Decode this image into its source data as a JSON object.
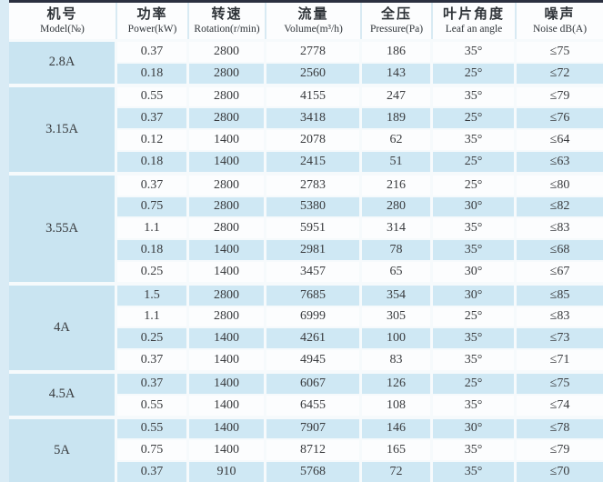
{
  "table": {
    "columns": [
      {
        "zh": "机号",
        "en": "Model(№)"
      },
      {
        "zh": "功率",
        "en": "Power(kW)"
      },
      {
        "zh": "转速",
        "en": "Rotation(r/min)"
      },
      {
        "zh": "流量",
        "en": "Volume(m³/h)"
      },
      {
        "zh": "全压",
        "en": "Pressure(Pa)"
      },
      {
        "zh": "叶片角度",
        "en": "Leaf an angle"
      },
      {
        "zh": "噪声",
        "en": "Noise dB(A)"
      }
    ],
    "groups": [
      {
        "model": "2.8A",
        "rows": [
          [
            "0.37",
            "2800",
            "2778",
            "186",
            "35°",
            "≤75"
          ],
          [
            "0.18",
            "2800",
            "2560",
            "143",
            "25°",
            "≤72"
          ]
        ]
      },
      {
        "model": "3.15A",
        "rows": [
          [
            "0.55",
            "2800",
            "4155",
            "247",
            "35°",
            "≤79"
          ],
          [
            "0.37",
            "2800",
            "3418",
            "189",
            "25°",
            "≤76"
          ],
          [
            "0.12",
            "1400",
            "2078",
            "62",
            "35°",
            "≤64"
          ],
          [
            "0.18",
            "1400",
            "2415",
            "51",
            "25°",
            "≤63"
          ]
        ]
      },
      {
        "model": "3.55A",
        "rows": [
          [
            "0.37",
            "2800",
            "2783",
            "216",
            "25°",
            "≤80"
          ],
          [
            "0.75",
            "2800",
            "5380",
            "280",
            "30°",
            "≤82"
          ],
          [
            "1.1",
            "2800",
            "5951",
            "314",
            "35°",
            "≤83"
          ],
          [
            "0.18",
            "1400",
            "2981",
            "78",
            "35°",
            "≤68"
          ],
          [
            "0.25",
            "1400",
            "3457",
            "65",
            "30°",
            "≤67"
          ]
        ]
      },
      {
        "model": "4A",
        "rows": [
          [
            "1.5",
            "2800",
            "7685",
            "354",
            "30°",
            "≤85"
          ],
          [
            "1.1",
            "2800",
            "6999",
            "305",
            "25°",
            "≤83"
          ],
          [
            "0.25",
            "1400",
            "4261",
            "100",
            "35°",
            "≤73"
          ],
          [
            "0.37",
            "1400",
            "4945",
            "83",
            "35°",
            "≤71"
          ]
        ]
      },
      {
        "model": "4.5A",
        "rows": [
          [
            "0.37",
            "1400",
            "6067",
            "126",
            "25°",
            "≤75"
          ],
          [
            "0.55",
            "1400",
            "6455",
            "108",
            "35°",
            "≤74"
          ]
        ]
      },
      {
        "model": "5A",
        "rows": [
          [
            "0.55",
            "1400",
            "7907",
            "146",
            "30°",
            "≤78"
          ],
          [
            "0.75",
            "1400",
            "8712",
            "165",
            "35°",
            "≤79"
          ],
          [
            "0.37",
            "910",
            "5768",
            "72",
            "35°",
            "≤70"
          ]
        ]
      }
    ]
  },
  "colors": {
    "top_border": "#2b3040",
    "cell_blue": "#cfe8f4",
    "model_blue": "#c9e4f1",
    "row_white": "#fcfdfe",
    "strip": "#d9ebf5",
    "text": "#393b3e"
  }
}
